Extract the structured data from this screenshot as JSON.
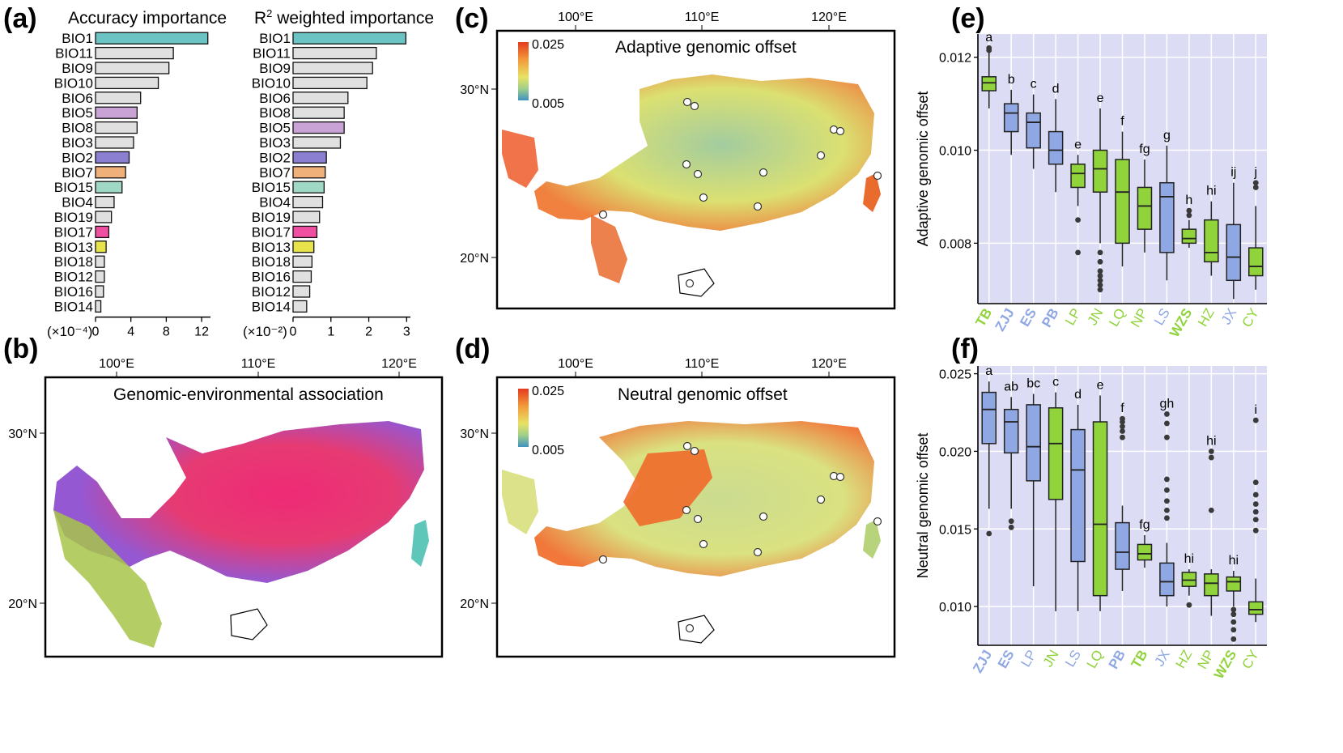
{
  "colors": {
    "blue_group": "#8fa7e3",
    "green_group": "#90d33a",
    "panel_bg": "#dcdcf4",
    "teal": "#6cc3c3",
    "lavender": "#c9a3d6",
    "purple": "#8a7fd0",
    "orange": "#f0b07a",
    "mint": "#9fd9c6",
    "pink": "#f04fa1",
    "yellow": "#e6e44a",
    "grey": "#e0e0e0"
  },
  "panel_labels": [
    "(a)",
    "(b)",
    "(c)",
    "(d)",
    "(e)",
    "(f)"
  ],
  "chart_data": [
    {
      "id": "a1",
      "type": "bar",
      "orientation": "horizontal",
      "title": "Accuracy importance",
      "unit_label": "(×10⁻⁴)",
      "xlim": [
        0,
        13
      ],
      "ticks": [
        0,
        4,
        8,
        12
      ],
      "categories": [
        "BIO1",
        "BIO11",
        "BIO9",
        "BIO10",
        "BIO6",
        "BIO5",
        "BIO8",
        "BIO3",
        "BIO2",
        "BIO7",
        "BIO15",
        "BIO4",
        "BIO19",
        "BIO17",
        "BIO13",
        "BIO18",
        "BIO12",
        "BIO16",
        "BIO14"
      ],
      "values": [
        12.7,
        8.8,
        8.3,
        7.1,
        5.1,
        4.7,
        4.7,
        4.3,
        3.8,
        3.4,
        3.0,
        2.1,
        1.8,
        1.5,
        1.2,
        1.0,
        1.0,
        0.9,
        0.6
      ],
      "bar_colors": [
        "teal",
        "grey",
        "grey",
        "grey",
        "grey",
        "lavender",
        "grey",
        "grey",
        "purple",
        "orange",
        "mint",
        "grey",
        "grey",
        "pink",
        "yellow",
        "grey",
        "grey",
        "grey",
        "grey"
      ]
    },
    {
      "id": "a2",
      "type": "bar",
      "orientation": "horizontal",
      "title_prefix": "R",
      "title_sup": "2",
      "title_suffix": " weighted importance",
      "unit_label": "(×10⁻²)",
      "xlim": [
        0,
        3.1
      ],
      "ticks": [
        0,
        1,
        2,
        3
      ],
      "categories": [
        "BIO1",
        "BIO11",
        "BIO9",
        "BIO10",
        "BIO6",
        "BIO8",
        "BIO5",
        "BIO3",
        "BIO2",
        "BIO7",
        "BIO15",
        "BIO4",
        "BIO19",
        "BIO17",
        "BIO13",
        "BIO18",
        "BIO16",
        "BIO12",
        "BIO14"
      ],
      "values": [
        2.98,
        2.2,
        2.1,
        1.95,
        1.45,
        1.35,
        1.35,
        1.25,
        0.88,
        0.85,
        0.82,
        0.78,
        0.7,
        0.63,
        0.55,
        0.5,
        0.48,
        0.44,
        0.36
      ],
      "bar_colors": [
        "teal",
        "grey",
        "grey",
        "grey",
        "grey",
        "grey",
        "lavender",
        "grey",
        "purple",
        "orange",
        "mint",
        "grey",
        "grey",
        "pink",
        "yellow",
        "grey",
        "grey",
        "grey",
        "grey"
      ]
    },
    {
      "id": "e",
      "type": "box",
      "ylabel": "Adaptive genomic offset",
      "ylim": [
        0.0067,
        0.0125
      ],
      "ticks": [
        0.008,
        0.01,
        0.012
      ],
      "tick_labels": [
        "0.008",
        "0.010",
        "0.012"
      ],
      "boxes": [
        {
          "name": "TB",
          "group": "green",
          "bold": true,
          "q1": 0.01128,
          "med": 0.01145,
          "q3": 0.01158,
          "lo": 0.0109,
          "hi": 0.0121,
          "out": [
            0.0122,
            0.01215
          ],
          "letter": "a"
        },
        {
          "name": "ZJJ",
          "group": "blue",
          "bold": true,
          "q1": 0.0104,
          "med": 0.0108,
          "q3": 0.011,
          "lo": 0.0099,
          "hi": 0.0113,
          "out": [],
          "letter": "b"
        },
        {
          "name": "ES",
          "group": "blue",
          "bold": true,
          "q1": 0.01005,
          "med": 0.0106,
          "q3": 0.0108,
          "lo": 0.0096,
          "hi": 0.0112,
          "out": [],
          "letter": "c"
        },
        {
          "name": "PB",
          "group": "blue",
          "bold": true,
          "q1": 0.0097,
          "med": 0.01,
          "q3": 0.0104,
          "lo": 0.0091,
          "hi": 0.0111,
          "out": [],
          "letter": "d"
        },
        {
          "name": "LP",
          "group": "green",
          "bold": false,
          "q1": 0.0092,
          "med": 0.0095,
          "q3": 0.0097,
          "lo": 0.0088,
          "hi": 0.0099,
          "out": [
            0.0085,
            0.0078
          ],
          "letter": "e"
        },
        {
          "name": "JN",
          "group": "green",
          "bold": false,
          "q1": 0.0091,
          "med": 0.0096,
          "q3": 0.01,
          "lo": 0.008,
          "hi": 0.0109,
          "out": [
            0.0078,
            0.0076,
            0.0074,
            0.0073,
            0.0072,
            0.0071,
            0.007
          ],
          "letter": "e"
        },
        {
          "name": "LQ",
          "group": "green",
          "bold": false,
          "q1": 0.008,
          "med": 0.0091,
          "q3": 0.0098,
          "lo": 0.0075,
          "hi": 0.0104,
          "out": [],
          "letter": "f"
        },
        {
          "name": "NP",
          "group": "green",
          "bold": false,
          "q1": 0.0083,
          "med": 0.0088,
          "q3": 0.0092,
          "lo": 0.0078,
          "hi": 0.0098,
          "out": [],
          "letter": "fg"
        },
        {
          "name": "LS",
          "group": "blue",
          "bold": false,
          "q1": 0.0078,
          "med": 0.009,
          "q3": 0.0093,
          "lo": 0.0072,
          "hi": 0.0101,
          "out": [],
          "letter": "g"
        },
        {
          "name": "WZS",
          "group": "green",
          "bold": true,
          "q1": 0.008,
          "med": 0.0081,
          "q3": 0.0083,
          "lo": 0.0079,
          "hi": 0.0085,
          "out": [
            0.0087,
            0.0086
          ],
          "letter": "h"
        },
        {
          "name": "HZ",
          "group": "green",
          "bold": false,
          "q1": 0.0076,
          "med": 0.0078,
          "q3": 0.0085,
          "lo": 0.0073,
          "hi": 0.0089,
          "out": [],
          "letter": "hi"
        },
        {
          "name": "JX",
          "group": "blue",
          "bold": false,
          "q1": 0.0072,
          "med": 0.0077,
          "q3": 0.0084,
          "lo": 0.0068,
          "hi": 0.0093,
          "out": [],
          "letter": "ij"
        },
        {
          "name": "CY",
          "group": "green",
          "bold": false,
          "q1": 0.0073,
          "med": 0.0075,
          "q3": 0.0079,
          "lo": 0.007,
          "hi": 0.0088,
          "out": [
            0.0092,
            0.0093
          ],
          "letter": "j"
        }
      ]
    },
    {
      "id": "f",
      "type": "box",
      "ylabel": "Neutral genomic offset",
      "ylim": [
        0.0075,
        0.0255
      ],
      "ticks": [
        0.01,
        0.015,
        0.02,
        0.025
      ],
      "tick_labels": [
        "0.010",
        "0.015",
        "0.020",
        "0.025"
      ],
      "boxes": [
        {
          "name": "ZJJ",
          "group": "blue",
          "bold": true,
          "q1": 0.0205,
          "med": 0.0227,
          "q3": 0.0238,
          "lo": 0.0163,
          "hi": 0.0245,
          "out": [
            0.0147
          ],
          "letter": "a"
        },
        {
          "name": "ES",
          "group": "blue",
          "bold": true,
          "q1": 0.0199,
          "med": 0.0219,
          "q3": 0.0227,
          "lo": 0.0163,
          "hi": 0.0235,
          "out": [
            0.0155,
            0.0151
          ],
          "letter": "ab"
        },
        {
          "name": "LP",
          "group": "blue",
          "bold": false,
          "q1": 0.0181,
          "med": 0.0203,
          "q3": 0.023,
          "lo": 0.0113,
          "hi": 0.0237,
          "out": [],
          "letter": "bc"
        },
        {
          "name": "JN",
          "group": "green",
          "bold": false,
          "q1": 0.0169,
          "med": 0.0205,
          "q3": 0.0228,
          "lo": 0.0097,
          "hi": 0.0238,
          "out": [],
          "letter": "c"
        },
        {
          "name": "LS",
          "group": "blue",
          "bold": false,
          "q1": 0.0129,
          "med": 0.0188,
          "q3": 0.0214,
          "lo": 0.0097,
          "hi": 0.023,
          "out": [],
          "letter": "d"
        },
        {
          "name": "LQ",
          "group": "green",
          "bold": false,
          "q1": 0.0107,
          "med": 0.0153,
          "q3": 0.0219,
          "lo": 0.0097,
          "hi": 0.0236,
          "out": [],
          "letter": "e"
        },
        {
          "name": "PB",
          "group": "blue",
          "bold": true,
          "q1": 0.0124,
          "med": 0.0135,
          "q3": 0.0154,
          "lo": 0.011,
          "hi": 0.0165,
          "out": [
            0.0209,
            0.0213,
            0.0216,
            0.0219,
            0.0221
          ],
          "letter": "f"
        },
        {
          "name": "TB",
          "group": "green",
          "bold": true,
          "q1": 0.013,
          "med": 0.0134,
          "q3": 0.014,
          "lo": 0.0125,
          "hi": 0.0146,
          "out": [],
          "letter": "fg"
        },
        {
          "name": "JX",
          "group": "blue",
          "bold": false,
          "q1": 0.0107,
          "med": 0.0116,
          "q3": 0.0128,
          "lo": 0.01,
          "hi": 0.0141,
          "out": [
            0.0157,
            0.0162,
            0.0168,
            0.0175,
            0.0182,
            0.0209,
            0.0218,
            0.0224
          ],
          "letter": "gh"
        },
        {
          "name": "HZ",
          "group": "green",
          "bold": false,
          "q1": 0.0113,
          "med": 0.0117,
          "q3": 0.0122,
          "lo": 0.0107,
          "hi": 0.0124,
          "out": [
            0.0101
          ],
          "letter": "hi"
        },
        {
          "name": "NP",
          "group": "green",
          "bold": false,
          "q1": 0.0107,
          "med": 0.0115,
          "q3": 0.0121,
          "lo": 0.0094,
          "hi": 0.0124,
          "out": [
            0.0162,
            0.0196,
            0.02
          ],
          "letter": "hi"
        },
        {
          "name": "WZS",
          "group": "green",
          "bold": true,
          "q1": 0.011,
          "med": 0.0116,
          "q3": 0.0119,
          "lo": 0.01,
          "hi": 0.0123,
          "out": [
            0.0079,
            0.0085,
            0.009,
            0.0095,
            0.0098
          ],
          "letter": "hi"
        },
        {
          "name": "CY",
          "group": "green",
          "bold": false,
          "q1": 0.0095,
          "med": 0.0098,
          "q3": 0.0103,
          "lo": 0.009,
          "hi": 0.0118,
          "out": [
            0.0149,
            0.0156,
            0.0161,
            0.0166,
            0.0172,
            0.018,
            0.022
          ],
          "letter": "i"
        }
      ]
    },
    {
      "id": "b",
      "type": "map",
      "title": "Genomic-environmental association",
      "lon_ticks": [
        "100°E",
        "110°E",
        "120°E"
      ],
      "lat_ticks": [
        "30°N",
        "20°N"
      ]
    },
    {
      "id": "c",
      "type": "map",
      "title": "Adaptive genomic offset",
      "legend_max": "0.025",
      "legend_min": "0.005",
      "lon_ticks": [
        "100°E",
        "110°E",
        "120°E"
      ],
      "lat_ticks": [
        "30°N",
        "20°N"
      ]
    },
    {
      "id": "d",
      "type": "map",
      "title": "Neutral genomic offset",
      "legend_max": "0.025",
      "legend_min": "0.005",
      "lon_ticks": [
        "100°E",
        "110°E",
        "120°E"
      ],
      "lat_ticks": [
        "30°N",
        "20°N"
      ]
    }
  ]
}
